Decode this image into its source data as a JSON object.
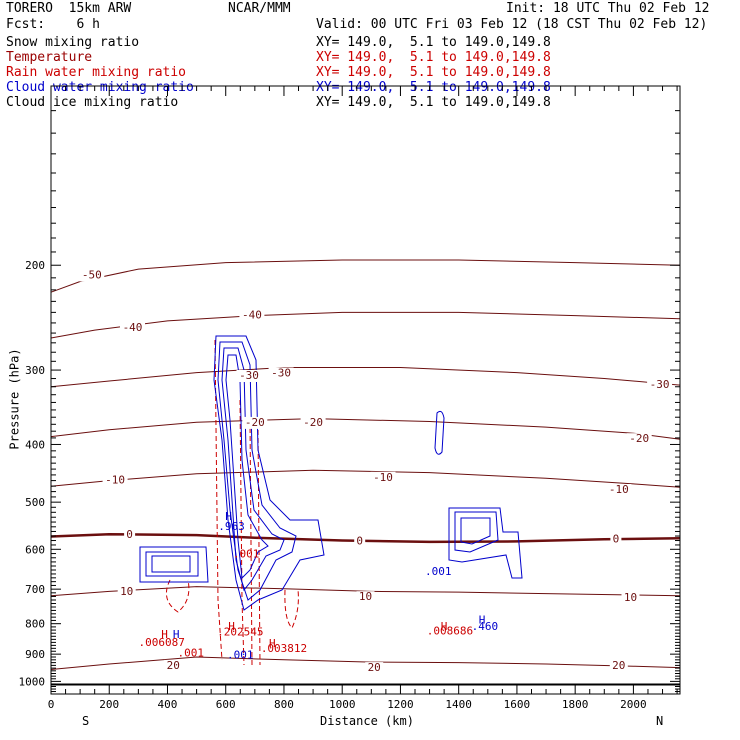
{
  "header": {
    "model": "TORERO  15km ARW",
    "center": "NCAR/MMM",
    "init": "Init: 18 UTC Thu 02 Feb 12",
    "fcst": "Fcst:    6 h",
    "valid": "Valid: 00 UTC Fri 03 Feb 12 (18 CST Thu 02 Feb 12)",
    "fields": [
      {
        "name": "Snow mixing ratio",
        "xy": "XY= 149.0,  5.1 to 149.0,149.8",
        "color": "#000000"
      },
      {
        "name": "Temperature",
        "xy": "XY= 149.0,  5.1 to 149.0,149.8",
        "color": "#990000"
      },
      {
        "name": "Rain water mixing ratio",
        "xy": "XY= 149.0,  5.1 to 149.0,149.8",
        "color": "#cc0000"
      },
      {
        "name": "Cloud water mixing ratio",
        "xy": "XY= 149.0,  5.1 to 149.0,149.8",
        "color": "#0000cc"
      },
      {
        "name": "Cloud ice mixing ratio",
        "xy": "XY= 149.0,  5.1 to 149.0,149.8",
        "color": "#000000"
      }
    ]
  },
  "chart_data": {
    "type": "contour",
    "xlabel": "Distance (km)",
    "ylabel": "Pressure (hPa)",
    "xlim": [
      0,
      2160
    ],
    "ylim": [
      1050,
      100
    ],
    "y_scale": "log",
    "x_ticks": [
      0,
      200,
      400,
      600,
      800,
      1000,
      1200,
      1400,
      1600,
      1800,
      2000
    ],
    "y_ticks": [
      200,
      300,
      400,
      500,
      600,
      700,
      800,
      900,
      1000
    ],
    "x_end_labels": {
      "left": "S",
      "right": "N"
    },
    "temperature_contours": [
      {
        "value": -50,
        "label": "-50",
        "points": [
          [
            0,
            222
          ],
          [
            100,
            213
          ],
          [
            300,
            203
          ],
          [
            600,
            198
          ],
          [
            1000,
            196
          ],
          [
            1400,
            196
          ],
          [
            1800,
            198
          ],
          [
            2160,
            200
          ]
        ]
      },
      {
        "value": -40,
        "label": "-40",
        "points": [
          [
            0,
            265
          ],
          [
            150,
            257
          ],
          [
            400,
            248
          ],
          [
            700,
            243
          ],
          [
            1000,
            240
          ],
          [
            1400,
            240
          ],
          [
            1800,
            243
          ],
          [
            2160,
            246
          ]
        ]
      },
      {
        "value": -30,
        "label": "-30",
        "points": [
          [
            0,
            320
          ],
          [
            200,
            313
          ],
          [
            500,
            303
          ],
          [
            800,
            297
          ],
          [
            1200,
            297
          ],
          [
            1600,
            303
          ],
          [
            1900,
            310
          ],
          [
            2160,
            318
          ]
        ]
      },
      {
        "value": -20,
        "label": "-20",
        "points": [
          [
            0,
            388
          ],
          [
            200,
            378
          ],
          [
            500,
            367
          ],
          [
            900,
            362
          ],
          [
            1300,
            366
          ],
          [
            1700,
            374
          ],
          [
            2000,
            383
          ],
          [
            2160,
            392
          ]
        ]
      },
      {
        "value": -10,
        "label": "-10",
        "points": [
          [
            0,
            470
          ],
          [
            200,
            460
          ],
          [
            500,
            448
          ],
          [
            900,
            442
          ],
          [
            1300,
            446
          ],
          [
            1700,
            456
          ],
          [
            2000,
            466
          ],
          [
            2160,
            472
          ]
        ]
      },
      {
        "value": 0,
        "label": "0",
        "points": [
          [
            0,
            571
          ],
          [
            200,
            566
          ],
          [
            500,
            568
          ],
          [
            700,
            574
          ],
          [
            1000,
            580
          ],
          [
            1300,
            583
          ],
          [
            1600,
            582
          ],
          [
            1900,
            577
          ],
          [
            2160,
            575
          ]
        ]
      },
      {
        "value": 10,
        "label": "10",
        "points": [
          [
            0,
            718
          ],
          [
            200,
            706
          ],
          [
            500,
            693
          ],
          [
            800,
            699
          ],
          [
            1100,
            706
          ],
          [
            1400,
            708
          ],
          [
            1700,
            712
          ],
          [
            2000,
            716
          ],
          [
            2160,
            718
          ]
        ]
      },
      {
        "value": 20,
        "label": "20",
        "points": [
          [
            0,
            955
          ],
          [
            200,
            935
          ],
          [
            500,
            910
          ],
          [
            800,
            920
          ],
          [
            1100,
            928
          ],
          [
            1400,
            930
          ],
          [
            1700,
            935
          ],
          [
            2000,
            943
          ],
          [
            2160,
            948
          ]
        ]
      }
    ],
    "temperature_contour_labels": [
      {
        "text": "-50",
        "x": 140,
        "p": 208
      },
      {
        "text": "-40",
        "x": 280,
        "p": 255
      },
      {
        "text": "-40",
        "x": 690,
        "p": 243
      },
      {
        "text": "-30",
        "x": 680,
        "p": 307
      },
      {
        "text": "-30",
        "x": 790,
        "p": 304
      },
      {
        "text": "-30",
        "x": 2090,
        "p": 318
      },
      {
        "text": "-20",
        "x": 700,
        "p": 368
      },
      {
        "text": "-20",
        "x": 900,
        "p": 368
      },
      {
        "text": "-20",
        "x": 2020,
        "p": 392
      },
      {
        "text": "-10",
        "x": 220,
        "p": 460
      },
      {
        "text": "-10",
        "x": 1140,
        "p": 455
      },
      {
        "text": "-10",
        "x": 1950,
        "p": 477
      },
      {
        "text": "0",
        "x": 270,
        "p": 568
      },
      {
        "text": "0",
        "x": 1060,
        "p": 582
      },
      {
        "text": "0",
        "x": 1940,
        "p": 578
      },
      {
        "text": "10",
        "x": 260,
        "p": 708
      },
      {
        "text": "10",
        "x": 1080,
        "p": 722
      },
      {
        "text": "10",
        "x": 1990,
        "p": 724
      },
      {
        "text": "20",
        "x": 420,
        "p": 942
      },
      {
        "text": "20",
        "x": 1110,
        "p": 950
      },
      {
        "text": "20",
        "x": 1950,
        "p": 942
      }
    ],
    "rain_water_labels": [
      {
        "text": "H",
        "x": 390,
        "p": 835
      },
      {
        "text": ".006087",
        "x": 380,
        "p": 862
      },
      {
        "text": ".001",
        "x": 480,
        "p": 898
      },
      {
        "text": "H",
        "x": 620,
        "p": 810
      },
      {
        "text": ".202545",
        "x": 650,
        "p": 827
      },
      {
        "text": ".001",
        "x": 670,
        "p": 612
      },
      {
        "text": "H",
        "x": 760,
        "p": 865
      },
      {
        "text": ".003812",
        "x": 800,
        "p": 882
      },
      {
        "text": "H",
        "x": 1350,
        "p": 810
      },
      {
        "text": ".008686",
        "x": 1370,
        "p": 825
      }
    ],
    "cloud_water_labels": [
      {
        "text": "H",
        "x": 430,
        "p": 835
      },
      {
        "text": "H",
        "x": 610,
        "p": 530
      },
      {
        "text": ".963",
        "x": 620,
        "p": 550
      },
      {
        "text": ".001",
        "x": 1330,
        "p": 655
      },
      {
        "text": "H",
        "x": 1480,
        "p": 790
      },
      {
        "text": ".460",
        "x": 1490,
        "p": 810
      },
      {
        "text": ".001",
        "x": 650,
        "p": 905
      }
    ]
  }
}
